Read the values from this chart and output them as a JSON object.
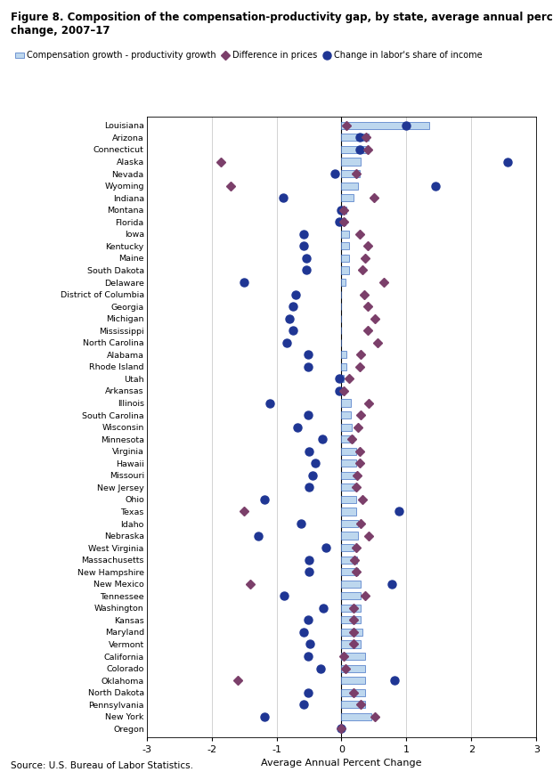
{
  "title_line1": "Figure 8. Composition of the compensation-productivity gap, by state, average annual percent",
  "title_line2": "change, 2007–17",
  "source": "Source: U.S. Bureau of Labor Statistics.",
  "xlabel": "Average Annual Percent Change",
  "states": [
    "Louisiana",
    "Arizona",
    "Connecticut",
    "Alaska",
    "Nevada",
    "Wyoming",
    "Indiana",
    "Montana",
    "Florida",
    "Iowa",
    "Kentucky",
    "Maine",
    "South Dakota",
    "Delaware",
    "District of Columbia",
    "Georgia",
    "Michigan",
    "Mississippi",
    "North Carolina",
    "Alabama",
    "Rhode Island",
    "Utah",
    "Arkansas",
    "Illinois",
    "South Carolina",
    "Wisconsin",
    "Minnesota",
    "Virginia",
    "Hawaii",
    "Missouri",
    "New Jersey",
    "Ohio",
    "Texas",
    "Idaho",
    "Nebraska",
    "West Virginia",
    "Massachusetts",
    "New Hampshire",
    "New Mexico",
    "Tennessee",
    "Washington",
    "Kansas",
    "Maryland",
    "Vermont",
    "California",
    "Colorado",
    "Oklahoma",
    "North Dakota",
    "Pennsylvania",
    "New York",
    "Oregon"
  ],
  "bar_values": [
    1.35,
    0.42,
    0.4,
    0.3,
    0.28,
    0.25,
    0.18,
    0.08,
    0.06,
    0.12,
    0.12,
    0.12,
    0.12,
    0.06,
    0.0,
    0.0,
    0.0,
    0.0,
    0.0,
    0.08,
    0.08,
    0.04,
    0.04,
    0.14,
    0.14,
    0.16,
    0.18,
    0.22,
    0.22,
    0.22,
    0.22,
    0.22,
    0.22,
    0.26,
    0.26,
    0.18,
    0.24,
    0.26,
    0.3,
    0.3,
    0.3,
    0.3,
    0.32,
    0.3,
    0.36,
    0.36,
    0.36,
    0.36,
    0.36,
    0.46,
    0.0
  ],
  "diff_prices": [
    0.08,
    0.38,
    0.4,
    -1.85,
    0.22,
    -1.7,
    0.5,
    0.04,
    0.04,
    0.28,
    0.4,
    0.36,
    0.32,
    0.65,
    0.35,
    0.4,
    0.52,
    0.4,
    0.55,
    0.3,
    0.28,
    0.12,
    0.04,
    0.42,
    0.3,
    0.26,
    0.16,
    0.28,
    0.28,
    0.24,
    0.22,
    0.32,
    -1.5,
    0.3,
    0.42,
    0.22,
    0.2,
    0.22,
    -1.4,
    0.36,
    0.18,
    0.18,
    0.18,
    0.18,
    0.04,
    0.06,
    -1.6,
    0.18,
    0.3,
    0.52,
    0.0
  ],
  "labor_share": [
    1.0,
    0.28,
    0.28,
    2.55,
    -0.1,
    1.45,
    -0.9,
    0.0,
    -0.04,
    -0.58,
    -0.58,
    -0.54,
    -0.54,
    -1.5,
    -0.7,
    -0.74,
    -0.8,
    -0.74,
    -0.84,
    -0.52,
    -0.52,
    -0.04,
    -0.04,
    -1.1,
    -0.52,
    -0.68,
    -0.3,
    -0.5,
    -0.4,
    -0.44,
    -0.5,
    -1.18,
    0.88,
    -0.62,
    -1.28,
    -0.24,
    -0.5,
    -0.5,
    0.78,
    -0.88,
    -0.28,
    -0.52,
    -0.58,
    -0.48,
    -0.52,
    -0.32,
    0.82,
    -0.52,
    -0.58,
    -1.18,
    0.0
  ],
  "xlim": [
    -3,
    3
  ],
  "xticks": [
    -3,
    -2,
    -1,
    0,
    1,
    2,
    3
  ],
  "bar_color": "#BDD7EE",
  "bar_edgecolor": "#4472C4",
  "diamond_color": "#7B3F6A",
  "circle_color": "#1F3694",
  "grid_color": "#C0C0C0"
}
